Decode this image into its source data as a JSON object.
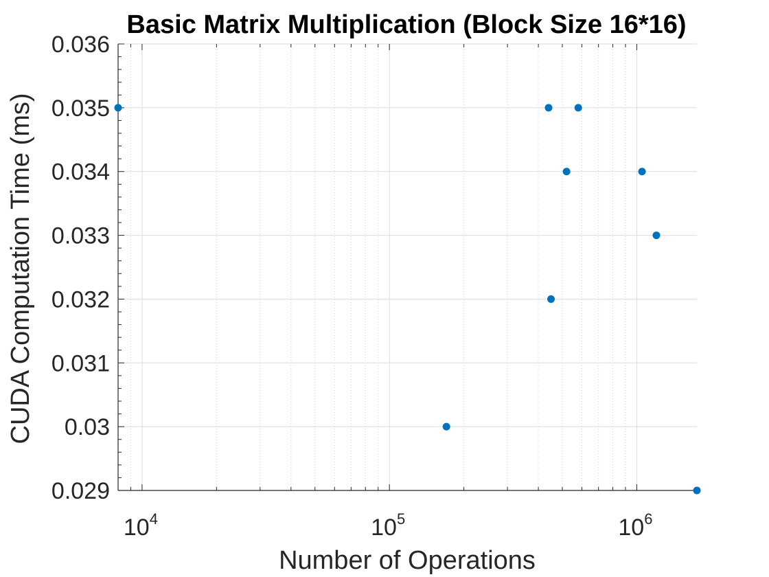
{
  "chart_data": {
    "type": "scatter",
    "title": "Basic Matrix Multiplication (Block Size 16*16)",
    "xlabel": "Number of Operations",
    "ylabel": "CUDA Computation Time (ms)",
    "xscale": "log",
    "xlim": [
      8000,
      1750000
    ],
    "ylim": [
      0.029,
      0.036
    ],
    "x_ticks": [
      {
        "base": "10",
        "exp": "4",
        "value": 10000
      },
      {
        "base": "10",
        "exp": "5",
        "value": 100000
      },
      {
        "base": "10",
        "exp": "6",
        "value": 1000000
      }
    ],
    "y_ticks": [
      "0.036",
      "0.035",
      "0.034",
      "0.033",
      "0.032",
      "0.031",
      "0.03",
      "0.029"
    ],
    "grid": true,
    "minor_grid": true,
    "marker_color": "#0072BD",
    "points": [
      {
        "x": 8000,
        "y": 0.035
      },
      {
        "x": 170000,
        "y": 0.03
      },
      {
        "x": 440000,
        "y": 0.035
      },
      {
        "x": 450000,
        "y": 0.032
      },
      {
        "x": 520000,
        "y": 0.034
      },
      {
        "x": 580000,
        "y": 0.035
      },
      {
        "x": 1050000,
        "y": 0.034
      },
      {
        "x": 1200000,
        "y": 0.033
      },
      {
        "x": 1750000,
        "y": 0.029
      }
    ]
  }
}
